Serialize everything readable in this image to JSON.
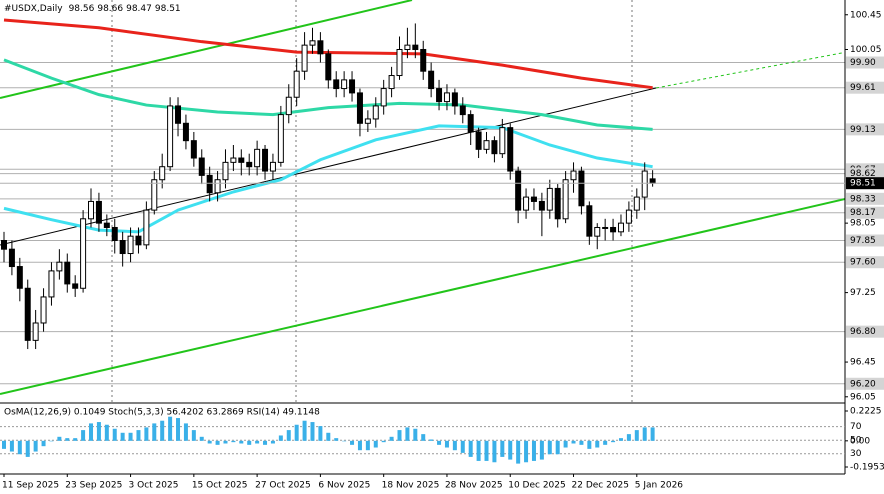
{
  "chart_data": {
    "type": "candlestick",
    "title": "#USDX,Daily",
    "categories": [
      "11 Sep 2025",
      null,
      null,
      null,
      null,
      null,
      null,
      null,
      "23 Sep 2025",
      null,
      null,
      null,
      null,
      null,
      null,
      null,
      "3 Oct 2025",
      null,
      null,
      null,
      null,
      null,
      null,
      null,
      "15 Oct 2025",
      null,
      null,
      null,
      null,
      null,
      null,
      null,
      "27 Oct 2025",
      null,
      null,
      null,
      null,
      null,
      null,
      null,
      "6 Nov 2025",
      null,
      null,
      null,
      null,
      null,
      null,
      null,
      "18 Nov 2025",
      null,
      null,
      null,
      null,
      null,
      null,
      null,
      "28 Nov 2025",
      null,
      null,
      null,
      null,
      null,
      null,
      null,
      "10 Dec 2025",
      null,
      null,
      null,
      null,
      null,
      null,
      null,
      "22 Dec 2025",
      null,
      null,
      null,
      null,
      null,
      null,
      null,
      "5 Jan 2026",
      null,
      null
    ],
    "open": [
      97.85,
      97.75,
      97.55,
      97.3,
      96.7,
      96.9,
      97.2,
      97.5,
      97.6,
      97.35,
      97.3,
      98.1,
      98.3,
      98.05,
      98.0,
      97.85,
      97.7,
      97.9,
      97.8,
      98.2,
      98.55,
      98.7,
      99.4,
      99.2,
      99.0,
      98.8,
      98.6,
      98.4,
      98.55,
      98.75,
      98.8,
      98.75,
      98.7,
      98.9,
      98.65,
      98.75,
      99.3,
      99.5,
      99.8,
      100.1,
      100.15,
      100.0,
      99.7,
      99.6,
      99.7,
      99.55,
      99.2,
      99.25,
      99.4,
      99.6,
      99.75,
      100.05,
      100.1,
      100.05,
      99.8,
      99.6,
      99.45,
      99.55,
      99.4,
      99.3,
      99.1,
      98.9,
      99.0,
      98.85,
      99.15,
      98.65,
      98.2,
      98.35,
      98.3,
      98.2,
      98.45,
      98.1,
      98.55,
      98.65,
      98.25,
      97.9,
      98.0,
      98.0,
      97.95,
      98.05,
      98.2,
      98.35,
      98.56
    ],
    "high": [
      97.95,
      97.85,
      97.65,
      97.4,
      97.05,
      97.3,
      97.6,
      97.75,
      97.7,
      97.45,
      98.2,
      98.45,
      98.4,
      98.15,
      98.1,
      97.95,
      98.0,
      98.0,
      98.3,
      98.65,
      98.85,
      99.5,
      99.5,
      99.3,
      99.1,
      98.9,
      98.7,
      98.65,
      98.9,
      98.95,
      98.9,
      98.85,
      99.0,
      98.95,
      98.85,
      99.4,
      99.65,
      99.95,
      100.25,
      100.3,
      100.25,
      100.05,
      99.8,
      99.8,
      99.8,
      99.6,
      99.35,
      99.5,
      99.7,
      99.85,
      100.2,
      100.3,
      100.35,
      100.15,
      99.9,
      99.7,
      99.65,
      99.6,
      99.5,
      99.35,
      99.15,
      99.1,
      99.05,
      99.25,
      99.2,
      98.7,
      98.45,
      98.45,
      98.4,
      98.55,
      98.5,
      98.65,
      98.75,
      98.7,
      98.3,
      98.05,
      98.1,
      98.1,
      98.15,
      98.3,
      98.45,
      98.75,
      98.66
    ],
    "low": [
      97.6,
      97.45,
      97.15,
      96.6,
      96.6,
      96.8,
      97.1,
      97.4,
      97.25,
      97.2,
      97.25,
      98.0,
      97.95,
      97.9,
      97.7,
      97.55,
      97.6,
      97.7,
      97.75,
      98.15,
      98.45,
      98.65,
      99.05,
      98.9,
      98.7,
      98.5,
      98.3,
      98.3,
      98.45,
      98.65,
      98.6,
      98.6,
      98.6,
      98.55,
      98.55,
      98.7,
      99.2,
      99.4,
      99.7,
      100.0,
      99.9,
      99.6,
      99.5,
      99.5,
      99.45,
      99.05,
      99.1,
      99.15,
      99.3,
      99.5,
      99.7,
      99.95,
      99.95,
      99.7,
      99.5,
      99.35,
      99.35,
      99.3,
      99.2,
      98.95,
      98.8,
      98.85,
      98.75,
      98.8,
      98.55,
      98.05,
      98.1,
      98.2,
      97.9,
      98.1,
      98.0,
      98.05,
      98.4,
      98.15,
      97.8,
      97.75,
      97.85,
      97.85,
      97.9,
      97.95,
      98.1,
      98.2,
      98.47
    ],
    "close": [
      97.75,
      97.55,
      97.3,
      96.7,
      96.9,
      97.2,
      97.5,
      97.6,
      97.35,
      97.3,
      98.1,
      98.3,
      98.05,
      98.0,
      97.85,
      97.7,
      97.9,
      97.8,
      98.2,
      98.55,
      98.7,
      99.4,
      99.2,
      99.0,
      98.8,
      98.6,
      98.4,
      98.55,
      98.75,
      98.8,
      98.75,
      98.7,
      98.9,
      98.65,
      98.75,
      99.3,
      99.5,
      99.8,
      100.1,
      100.15,
      100.0,
      99.7,
      99.6,
      99.7,
      99.55,
      99.2,
      99.25,
      99.4,
      99.6,
      99.75,
      100.05,
      100.1,
      100.05,
      99.8,
      99.6,
      99.45,
      99.55,
      99.4,
      99.3,
      99.1,
      98.9,
      99.0,
      98.85,
      99.15,
      98.65,
      98.2,
      98.35,
      98.3,
      98.2,
      98.45,
      98.1,
      98.55,
      98.65,
      98.25,
      97.9,
      98.0,
      98.0,
      97.95,
      98.05,
      98.2,
      98.35,
      98.65,
      98.51
    ],
    "ylim": [
      95.99,
      100.62
    ],
    "yticks": [
      100.45,
      100.05,
      98.05,
      97.25,
      96.45,
      96.05
    ],
    "levels": [
      {
        "value": 99.9,
        "label": "99.90"
      },
      99.61,
      99.13,
      98.67,
      98.62,
      98.33,
      98.17,
      97.85,
      {
        "value": 97.6,
        "label": "97.60"
      },
      {
        "value": 96.8,
        "label": "96.80"
      },
      {
        "value": 96.2,
        "label": "96.20"
      }
    ],
    "moving_averages": [
      {
        "color": "#e8231b",
        "x": [
          0,
          12,
          25,
          37,
          53,
          63,
          73,
          82
        ],
        "values": [
          100.39,
          100.3,
          100.14,
          100.02,
          100.0,
          99.87,
          99.72,
          99.61
        ]
      },
      {
        "color": "#2ed8a6",
        "x": [
          0,
          6,
          12,
          18,
          27,
          34,
          41,
          50,
          58,
          68,
          75,
          82
        ],
        "values": [
          99.93,
          99.72,
          99.53,
          99.41,
          99.33,
          99.3,
          99.38,
          99.43,
          99.41,
          99.3,
          99.18,
          99.13
        ]
      },
      {
        "color": "#3fe0f0",
        "x": [
          0,
          6,
          12,
          17,
          22,
          29,
          35,
          40,
          47,
          55,
          63,
          69,
          75,
          82
        ],
        "values": [
          98.22,
          98.09,
          97.97,
          97.95,
          98.2,
          98.41,
          98.55,
          98.78,
          99.01,
          99.17,
          99.15,
          98.95,
          98.8,
          98.7
        ]
      }
    ],
    "indicator": {
      "type": "histogram",
      "label": "OsMA(12,26,9) 0.1049 Stoch(5,3,3) 56.4202 63.2869 RSI(14) 49.1148",
      "color": "#3ab0e8",
      "values": [
        -0.06,
        -0.08,
        -0.1,
        -0.12,
        -0.08,
        -0.04,
        0.0,
        0.03,
        0.02,
        0.02,
        0.08,
        0.13,
        0.14,
        0.12,
        0.09,
        0.06,
        0.06,
        0.08,
        0.1,
        0.13,
        0.15,
        0.18,
        0.17,
        0.13,
        0.08,
        0.03,
        -0.02,
        -0.03,
        -0.02,
        -0.01,
        -0.02,
        -0.03,
        -0.02,
        -0.03,
        -0.02,
        0.04,
        0.08,
        0.12,
        0.15,
        0.14,
        0.11,
        0.06,
        0.02,
        0.0,
        -0.03,
        -0.07,
        -0.07,
        -0.05,
        -0.01,
        0.03,
        0.08,
        0.1,
        0.09,
        0.05,
        0.01,
        -0.03,
        -0.05,
        -0.07,
        -0.09,
        -0.12,
        -0.15,
        -0.15,
        -0.16,
        -0.12,
        -0.14,
        -0.17,
        -0.16,
        -0.15,
        -0.14,
        -0.1,
        -0.1,
        -0.05,
        -0.02,
        -0.03,
        -0.06,
        -0.05,
        -0.03,
        -0.01,
        0.02,
        0.05,
        0.08,
        0.1,
        0.1
      ],
      "ylim": [
        -0.2177,
        0.2673
      ],
      "yticks": [
        0.2225,
        {
          "value": 0,
          "label": "0.00"
        },
        -0.1953
      ],
      "y2lim": [
        3,
        102
      ],
      "y2ticks": [
        70,
        50,
        30
      ]
    }
  }
}
